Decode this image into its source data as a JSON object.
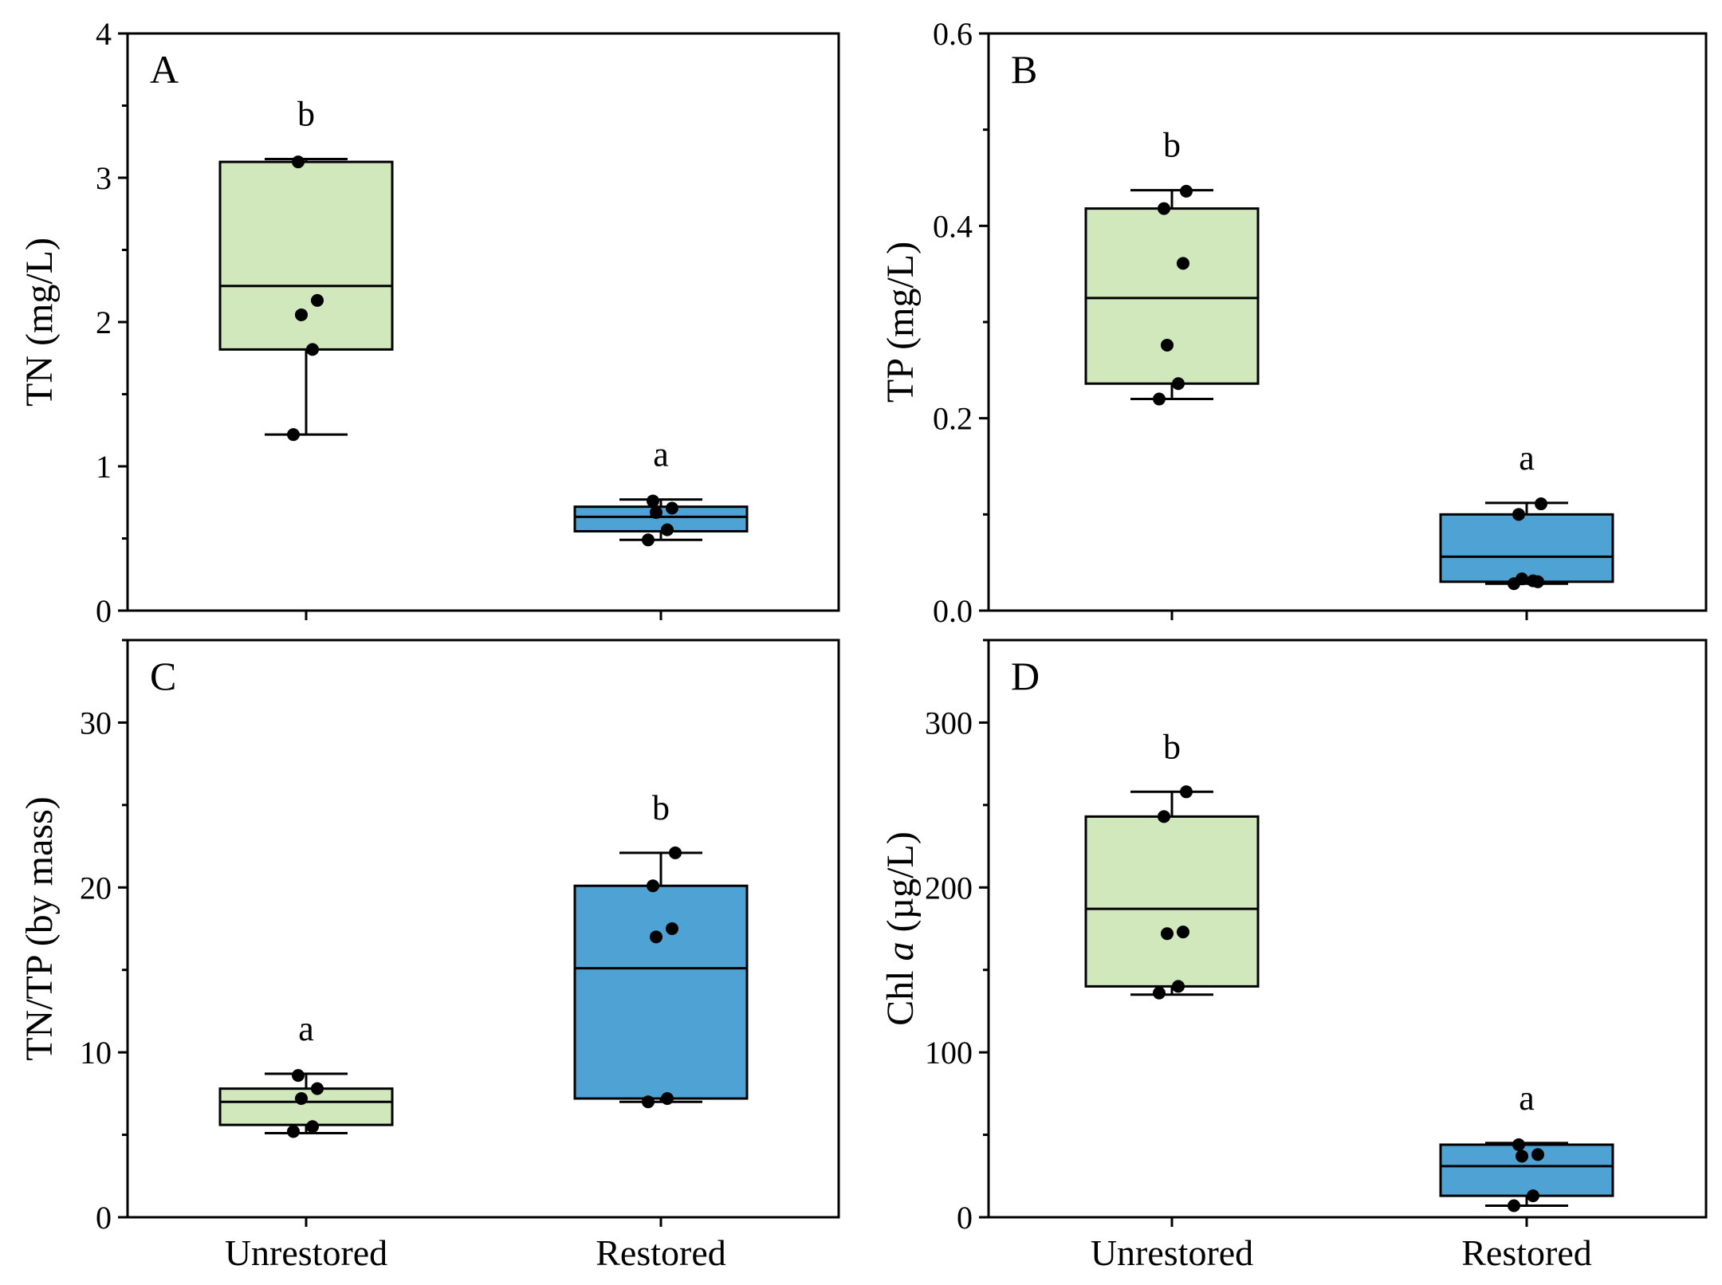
{
  "figure": {
    "categories": [
      "Unrestored",
      "Restored"
    ],
    "colors": {
      "unrestored": "#d0e8bb",
      "restored": "#4fa3d4",
      "line": "#000000",
      "point": "#000000"
    }
  },
  "chart_data": [
    {
      "type": "box",
      "panel": "A",
      "ylabel": "TN (mg/L)",
      "ylim": [
        0,
        4
      ],
      "yticks": [
        0,
        1,
        2,
        3,
        4
      ],
      "tick_labels": [
        "0",
        "1",
        "2",
        "3",
        "4"
      ],
      "categories": [
        "Unrestored",
        "Restored"
      ],
      "series": [
        {
          "name": "Unrestored",
          "box": {
            "min": 1.22,
            "q1": 1.81,
            "median": 2.25,
            "q3": 3.11,
            "max": 3.13
          },
          "points": [
            1.22,
            1.81,
            2.05,
            2.15,
            3.11
          ],
          "significance": "b"
        },
        {
          "name": "Restored",
          "box": {
            "min": 0.49,
            "q1": 0.55,
            "median": 0.65,
            "q3": 0.72,
            "max": 0.77
          },
          "points": [
            0.49,
            0.56,
            0.68,
            0.71,
            0.76
          ],
          "significance": "a"
        }
      ]
    },
    {
      "type": "box",
      "panel": "B",
      "ylabel": "TP (mg/L)",
      "ylim": [
        0,
        0.6
      ],
      "yticks": [
        0,
        0.2,
        0.4,
        0.6
      ],
      "tick_labels": [
        "0.0",
        "0.2",
        "0.4",
        "0.6"
      ],
      "categories": [
        "Unrestored",
        "Restored"
      ],
      "series": [
        {
          "name": "Unrestored",
          "box": {
            "min": 0.22,
            "q1": 0.236,
            "median": 0.325,
            "q3": 0.418,
            "max": 0.437
          },
          "points": [
            0.22,
            0.236,
            0.276,
            0.361,
            0.418,
            0.436
          ],
          "significance": "b"
        },
        {
          "name": "Restored",
          "box": {
            "min": 0.028,
            "q1": 0.03,
            "median": 0.056,
            "q3": 0.1,
            "max": 0.112
          },
          "points": [
            0.028,
            0.031,
            0.033,
            0.03,
            0.1,
            0.111
          ],
          "significance": "a"
        }
      ]
    },
    {
      "type": "box",
      "panel": "C",
      "ylabel": "TN/TP (by mass)",
      "ylim": [
        0,
        35
      ],
      "yticks": [
        0,
        10,
        20,
        30
      ],
      "tick_labels": [
        "0",
        "10",
        "20",
        "30"
      ],
      "categories": [
        "Unrestored",
        "Restored"
      ],
      "series": [
        {
          "name": "Unrestored",
          "box": {
            "min": 5.1,
            "q1": 5.6,
            "median": 7.0,
            "q3": 7.8,
            "max": 8.7
          },
          "points": [
            5.2,
            5.5,
            7.2,
            7.8,
            8.6
          ],
          "significance": "a"
        },
        {
          "name": "Restored",
          "box": {
            "min": 7.0,
            "q1": 7.2,
            "median": 15.1,
            "q3": 20.1,
            "max": 22.1
          },
          "points": [
            7.0,
            7.2,
            17.0,
            17.5,
            20.1,
            22.1
          ],
          "significance": "b"
        }
      ]
    },
    {
      "type": "box",
      "panel": "D",
      "ylabel": "Chl a (µg/L)",
      "ylabel_main": "Chl ",
      "ylabel_italic": "a",
      "ylabel_unit": " (µg/L)",
      "ylim": [
        0,
        350
      ],
      "yticks": [
        0,
        100,
        200,
        300
      ],
      "tick_labels": [
        "0",
        "100",
        "200",
        "300"
      ],
      "categories": [
        "Unrestored",
        "Restored"
      ],
      "series": [
        {
          "name": "Unrestored",
          "box": {
            "min": 135,
            "q1": 140,
            "median": 187,
            "q3": 243,
            "max": 258
          },
          "points": [
            136,
            140,
            172,
            173,
            243,
            258
          ],
          "significance": "b"
        },
        {
          "name": "Restored",
          "box": {
            "min": 7,
            "q1": 13,
            "median": 31,
            "q3": 44,
            "max": 45
          },
          "points": [
            7,
            13,
            37,
            38,
            44
          ],
          "significance": "a"
        }
      ]
    }
  ]
}
